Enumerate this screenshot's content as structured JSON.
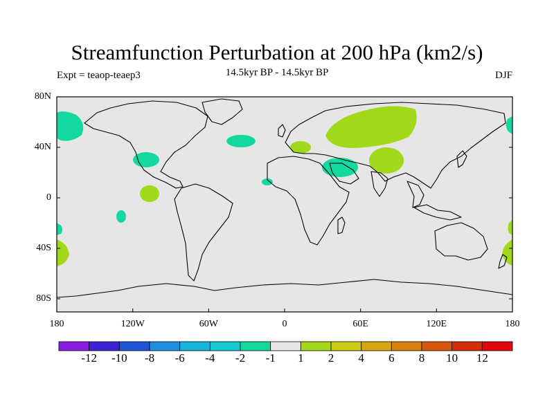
{
  "title": "Streamfunction Perturbation at 200 hPa (km2/s)",
  "left_label": "Expt = teaop-teaep3",
  "center_label": "14.5kyr BP - 14.5kyr BP",
  "right_label": "DJF",
  "map": {
    "projection": "cylindrical-equidistant",
    "background_color": "#e6e6e6",
    "lat_ticks": [
      "80N",
      "40N",
      "0",
      "40S",
      "80S"
    ],
    "lon_ticks": [
      "180",
      "120W",
      "60W",
      "0",
      "60E",
      "120E",
      "180"
    ]
  },
  "colorbar": {
    "colors": [
      "#8a1be2",
      "#3a24d6",
      "#1f55d8",
      "#1f8fe0",
      "#17b4dc",
      "#14ccd0",
      "#13d9a0",
      "#e6e6e6",
      "#a2d81a",
      "#c9cc12",
      "#d6a512",
      "#d8810f",
      "#d9570d",
      "#d62c0a",
      "#e0060a"
    ],
    "labels": [
      "-12",
      "-10",
      "-8",
      "-6",
      "-4",
      "-2",
      "-1",
      "1",
      "2",
      "4",
      "6",
      "8",
      "10",
      "12"
    ]
  },
  "anomalies": [
    {
      "name": "n-pacific-180",
      "sign": "negative",
      "level": "-1"
    },
    {
      "name": "n-pacific-east-edge",
      "sign": "negative",
      "level": "-1"
    },
    {
      "name": "sw-us",
      "sign": "negative",
      "level": "-1"
    },
    {
      "name": "n-atlantic",
      "sign": "negative",
      "level": "-1"
    },
    {
      "name": "tropical-e-pacific",
      "sign": "positive",
      "level": "1"
    },
    {
      "name": "s-pacific",
      "sign": "negative",
      "level": "-1"
    },
    {
      "name": "w-africa",
      "sign": "negative",
      "level": "-1"
    },
    {
      "name": "mediterranean",
      "sign": "positive",
      "level": "1"
    },
    {
      "name": "middle-east",
      "sign": "negative",
      "level": "-1"
    },
    {
      "name": "eurasia",
      "sign": "positive",
      "level": "1"
    },
    {
      "name": "tibet",
      "sign": "positive",
      "level": "1"
    },
    {
      "name": "sw-pacific-edge",
      "sign": "positive",
      "level": "1"
    }
  ]
}
